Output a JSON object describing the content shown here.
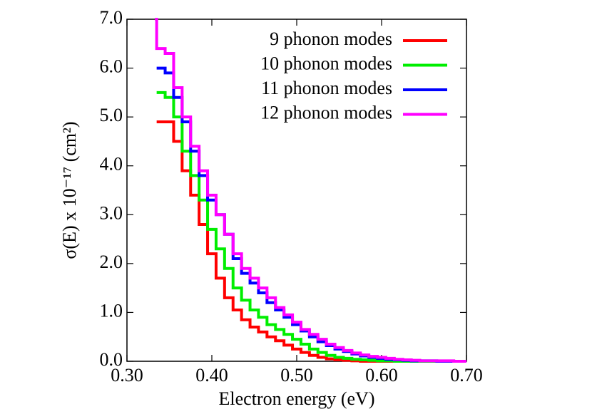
{
  "chart_data": {
    "type": "step-line",
    "xlabel": "Electron energy (eV)",
    "ylabel": "σ(E) x 10⁻¹⁷ (cm²)",
    "x": [
      0.333,
      0.335,
      0.345,
      0.355,
      0.365,
      0.375,
      0.385,
      0.395,
      0.405,
      0.415,
      0.425,
      0.435,
      0.445,
      0.455,
      0.465,
      0.475,
      0.485,
      0.495,
      0.505,
      0.515,
      0.525,
      0.535,
      0.545,
      0.555,
      0.565,
      0.575,
      0.585,
      0.595,
      0.605,
      0.615,
      0.625,
      0.635,
      0.645,
      0.655,
      0.665,
      0.675,
      0.685,
      0.695
    ],
    "series": [
      {
        "name": "9 phonon modes",
        "color": "#ff0000",
        "values": [
          null,
          4.9,
          4.9,
          4.5,
          3.9,
          3.4,
          2.8,
          2.2,
          1.7,
          1.3,
          1.05,
          0.85,
          0.7,
          0.6,
          0.5,
          0.42,
          0.33,
          0.25,
          0.18,
          0.12,
          0.08,
          0.05,
          0.03,
          0.02,
          0.01,
          0,
          0,
          0,
          0,
          0,
          0,
          0,
          0,
          0,
          0,
          0,
          0,
          0
        ]
      },
      {
        "name": "10 phonon modes",
        "color": "#00ee00",
        "values": [
          null,
          5.5,
          5.4,
          5.0,
          4.3,
          3.8,
          3.3,
          2.7,
          2.3,
          1.9,
          1.5,
          1.25,
          1.05,
          0.9,
          0.75,
          0.65,
          0.55,
          0.45,
          0.35,
          0.25,
          0.18,
          0.12,
          0.08,
          0.06,
          0.04,
          0.03,
          0.02,
          0.01,
          0.01,
          0,
          0,
          0,
          0,
          0,
          0,
          0,
          0,
          0
        ]
      },
      {
        "name": "11 phonon modes",
        "color": "#0000ff",
        "values": [
          null,
          6.0,
          5.9,
          5.4,
          4.9,
          4.3,
          3.8,
          3.3,
          3.0,
          2.6,
          2.1,
          1.8,
          1.6,
          1.4,
          1.2,
          1.05,
          0.9,
          0.75,
          0.62,
          0.5,
          0.4,
          0.32,
          0.25,
          0.2,
          0.15,
          0.11,
          0.08,
          0.06,
          0.04,
          0.03,
          0.02,
          0.01,
          0.01,
          0.01,
          0,
          0,
          0,
          0
        ]
      },
      {
        "name": "12 phonon modes",
        "color": "#ff00ff",
        "values": [
          7.0,
          6.4,
          6.3,
          5.6,
          5.0,
          4.4,
          3.9,
          3.4,
          3.0,
          2.6,
          2.2,
          1.9,
          1.7,
          1.5,
          1.3,
          1.1,
          0.95,
          0.8,
          0.65,
          0.55,
          0.45,
          0.35,
          0.28,
          0.22,
          0.17,
          0.13,
          0.1,
          0.08,
          0.06,
          0.04,
          0.03,
          0.02,
          0.01,
          0.01,
          0.01,
          0.01,
          0,
          0
        ]
      }
    ],
    "xlim": [
      0.3,
      0.7
    ],
    "xticks": [
      {
        "value": 0.3,
        "label": "0.30"
      },
      {
        "value": 0.4,
        "label": "0.40"
      },
      {
        "value": 0.5,
        "label": "0.50"
      },
      {
        "value": 0.6,
        "label": "0.60"
      },
      {
        "value": 0.7,
        "label": "0.70"
      }
    ],
    "ylim": [
      0,
      7
    ],
    "yticks": [
      {
        "value": 0,
        "label": "0.0"
      },
      {
        "value": 1,
        "label": "1.0"
      },
      {
        "value": 2,
        "label": "2.0"
      },
      {
        "value": 3,
        "label": "3.0"
      },
      {
        "value": 4,
        "label": "4.0"
      },
      {
        "value": 5,
        "label": "5.0"
      },
      {
        "value": 6,
        "label": "6.0"
      },
      {
        "value": 7,
        "label": "7.0"
      }
    ],
    "grid": false,
    "legend": "top-right"
  }
}
